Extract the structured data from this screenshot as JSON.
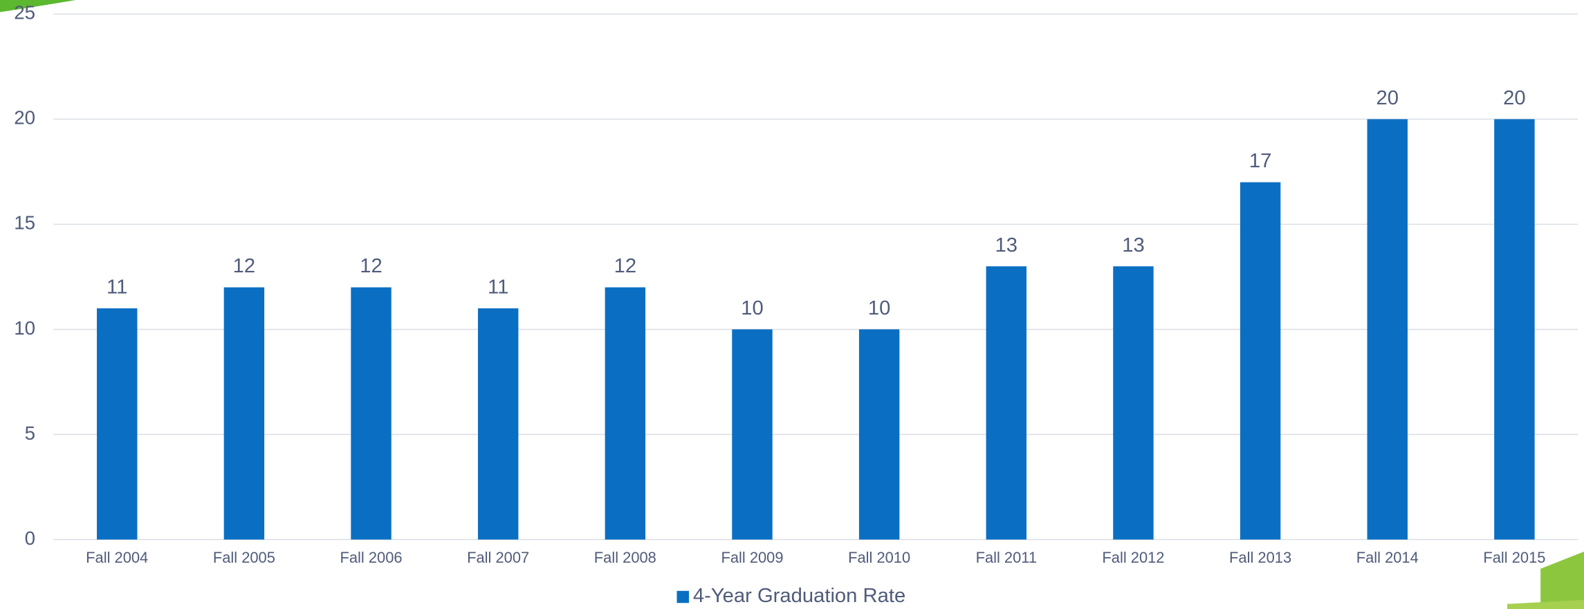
{
  "chart_data": {
    "type": "bar",
    "categories": [
      "Fall 2004",
      "Fall 2005",
      "Fall 2006",
      "Fall 2007",
      "Fall 2008",
      "Fall 2009",
      "Fall 2010",
      "Fall 2011",
      "Fall 2012",
      "Fall 2013",
      "Fall 2014",
      "Fall 2015"
    ],
    "series": [
      {
        "name": "4-Year Graduation Rate",
        "color": "#0a6fc2",
        "values": [
          11,
          12,
          12,
          11,
          12,
          10,
          10,
          13,
          13,
          17,
          20,
          20
        ]
      }
    ],
    "ylim": [
      0,
      25
    ],
    "yticks": [
      0,
      5,
      10,
      15,
      20,
      25
    ],
    "grid": true,
    "legend": "bottom"
  }
}
